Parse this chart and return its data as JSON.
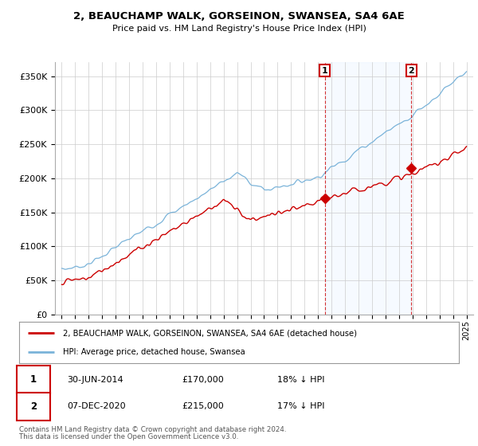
{
  "title_line1": "2, BEAUCHAMP WALK, GORSEINON, SWANSEA, SA4 6AE",
  "title_line2": "Price paid vs. HM Land Registry's House Price Index (HPI)",
  "ylabel_ticks": [
    "£0",
    "£50K",
    "£100K",
    "£150K",
    "£200K",
    "£250K",
    "£300K",
    "£350K"
  ],
  "ytick_vals": [
    0,
    50000,
    100000,
    150000,
    200000,
    250000,
    300000,
    350000
  ],
  "ylim": [
    0,
    370000
  ],
  "xlim_start": 1994.5,
  "xlim_end": 2025.5,
  "hpi_color": "#7ab3d9",
  "price_color": "#cc0000",
  "shade_color": "#ddeeff",
  "sale1_date": "30-JUN-2014",
  "sale1_price": 170000,
  "sale1_label": "18% ↓ HPI",
  "sale1_year": 2014.5,
  "sale2_date": "07-DEC-2020",
  "sale2_price": 215000,
  "sale2_label": "17% ↓ HPI",
  "sale2_year": 2020.92,
  "legend_label1": "2, BEAUCHAMP WALK, GORSEINON, SWANSEA, SA4 6AE (detached house)",
  "legend_label2": "HPI: Average price, detached house, Swansea",
  "footnote1": "Contains HM Land Registry data © Crown copyright and database right 2024.",
  "footnote2": "This data is licensed under the Open Government Licence v3.0.",
  "background_color": "#ffffff",
  "grid_color": "#cccccc"
}
